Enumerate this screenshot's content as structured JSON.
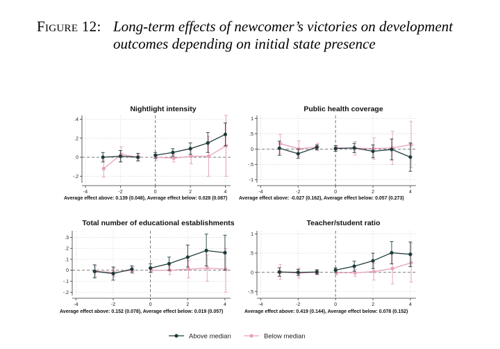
{
  "figure": {
    "label": "Figure 12:",
    "title_line1": "Long-term effects of newcomer’s victories on development",
    "title_line2": "outcomes depending on initial state presence"
  },
  "legend": {
    "items": [
      {
        "label": "Above median",
        "color": "#1f3b3b"
      },
      {
        "label": "Below median",
        "color": "#e8a0b8"
      }
    ],
    "placement": "bottom-center"
  },
  "chart_data": [
    {
      "type": "line",
      "title": "Nightlight intensity",
      "x": [
        -3,
        -2,
        -1,
        0,
        1,
        2,
        3,
        4
      ],
      "xticks": [
        -4,
        -2,
        0,
        2,
        4
      ],
      "xlim": [
        -4.2,
        4.3
      ],
      "yticks": [
        -0.2,
        0,
        0.2,
        0.4
      ],
      "ytick_labels": [
        "-.2",
        "0",
        ".2",
        ".4"
      ],
      "ylim": [
        -0.27,
        0.44
      ],
      "vline": 0,
      "note": "Average effect above: 0.139 (0.048),  Average effect below: 0.028 (0.087)",
      "series": [
        {
          "name": "Above median",
          "values": [
            0.0,
            0.01,
            0.0,
            0.02,
            0.05,
            0.09,
            0.15,
            0.24
          ],
          "lower": [
            -0.05,
            -0.05,
            -0.04,
            -0.01,
            0.01,
            0.03,
            0.05,
            0.12
          ],
          "upper": [
            0.05,
            0.07,
            0.04,
            0.05,
            0.09,
            0.15,
            0.26,
            0.36
          ]
        },
        {
          "name": "Below median",
          "values": [
            -0.12,
            0.03,
            0.0,
            0.0,
            -0.01,
            0.01,
            0.01,
            0.12
          ],
          "lower": [
            -0.21,
            -0.05,
            -0.04,
            -0.03,
            -0.05,
            -0.07,
            -0.2,
            -0.2
          ],
          "upper": [
            -0.03,
            0.11,
            0.04,
            0.03,
            0.03,
            0.09,
            0.22,
            0.44
          ]
        }
      ]
    },
    {
      "type": "line",
      "title": "Public health coverage",
      "x": [
        -3,
        -2,
        -1,
        0,
        1,
        2,
        3,
        4
      ],
      "xticks": [
        -4,
        -2,
        0,
        2,
        4
      ],
      "xlim": [
        -4.2,
        4.3
      ],
      "yticks": [
        -1,
        -0.5,
        0,
        0.5,
        1
      ],
      "ytick_labels": [
        "-1",
        "-.5",
        "0",
        ".5",
        "1"
      ],
      "ylim": [
        -1.1,
        1.1
      ],
      "vline": 0,
      "note": "Average effect above: -0.027 (0.162),  Average effect below: 0.057 (0.273)",
      "series": [
        {
          "name": "Above median",
          "values": [
            0.03,
            -0.15,
            0.06,
            0.02,
            0.04,
            -0.07,
            -0.01,
            -0.26
          ],
          "lower": [
            -0.2,
            -0.3,
            -0.02,
            -0.07,
            -0.11,
            -0.28,
            -0.35,
            -0.72
          ],
          "upper": [
            0.26,
            0.0,
            0.14,
            0.11,
            0.19,
            0.14,
            0.33,
            0.2
          ]
        },
        {
          "name": "Below median",
          "values": [
            0.18,
            0.01,
            0.07,
            0.04,
            0.03,
            0.02,
            0.04,
            0.15
          ],
          "lower": [
            -0.15,
            -0.25,
            -0.05,
            -0.04,
            -0.19,
            -0.33,
            -0.5,
            -0.6
          ],
          "upper": [
            0.48,
            0.27,
            0.19,
            0.12,
            0.25,
            0.37,
            0.58,
            0.9
          ]
        }
      ]
    },
    {
      "type": "line",
      "title": "Total number of educational establishments",
      "x": [
        -3,
        -2,
        -1,
        0,
        1,
        2,
        3,
        4
      ],
      "xticks": [
        -4,
        -2,
        0,
        2,
        4
      ],
      "xlim": [
        -4.2,
        4.3
      ],
      "yticks": [
        -0.2,
        -0.1,
        0,
        0.1,
        0.2,
        0.3
      ],
      "ytick_labels": [
        "-.2",
        "-.1",
        "0",
        ".1",
        ".2",
        ".3"
      ],
      "ylim": [
        -0.23,
        0.36
      ],
      "vline": 0,
      "note": "Average effect above: 0.152 (0.078),  Average effect below: 0.019 (0.057)",
      "series": [
        {
          "name": "Above median",
          "values": [
            -0.01,
            -0.03,
            0.01,
            0.02,
            0.06,
            0.12,
            0.18,
            0.16
          ],
          "lower": [
            -0.07,
            -0.09,
            -0.02,
            -0.02,
            0.0,
            0.03,
            0.04,
            0.0
          ],
          "upper": [
            0.05,
            0.03,
            0.04,
            0.06,
            0.12,
            0.23,
            0.33,
            0.32
          ]
        },
        {
          "name": "Below median",
          "values": [
            -0.01,
            -0.02,
            0.0,
            0.0,
            0.0,
            0.01,
            0.02,
            0.01
          ],
          "lower": [
            -0.06,
            -0.06,
            -0.03,
            -0.02,
            -0.04,
            -0.07,
            -0.1,
            -0.2
          ],
          "upper": [
            0.04,
            0.02,
            0.03,
            0.02,
            0.04,
            0.09,
            0.14,
            0.2
          ]
        }
      ]
    },
    {
      "type": "line",
      "title": "Teacher/student ratio",
      "x": [
        -3,
        -2,
        -1,
        0,
        1,
        2,
        3,
        4
      ],
      "xticks": [
        -4,
        -2,
        0,
        2,
        4
      ],
      "xlim": [
        -4.2,
        4.3
      ],
      "yticks": [
        -0.5,
        0,
        0.5,
        1
      ],
      "ytick_labels": [
        "-.5",
        "0",
        ".5",
        "1"
      ],
      "ylim": [
        -0.6,
        1.08
      ],
      "vline": 0,
      "note": "Average effect above: 0.419 (0.144),  Average effect below: 0.078 (0.152)",
      "series": [
        {
          "name": "Above median",
          "values": [
            0.01,
            0.0,
            0.01,
            0.06,
            0.16,
            0.3,
            0.51,
            0.47
          ],
          "lower": [
            -0.1,
            -0.08,
            -0.05,
            0.0,
            0.03,
            0.1,
            0.22,
            0.15
          ],
          "upper": [
            0.12,
            0.08,
            0.07,
            0.12,
            0.29,
            0.5,
            0.8,
            0.79
          ]
        },
        {
          "name": "Below median",
          "values": [
            0.01,
            -0.02,
            0.0,
            -0.01,
            -0.01,
            0.02,
            0.1,
            0.25
          ],
          "lower": [
            -0.18,
            -0.15,
            -0.06,
            -0.06,
            -0.1,
            -0.2,
            -0.3,
            -0.25
          ],
          "upper": [
            0.2,
            0.11,
            0.06,
            0.04,
            0.08,
            0.24,
            0.5,
            0.75
          ]
        }
      ]
    }
  ]
}
